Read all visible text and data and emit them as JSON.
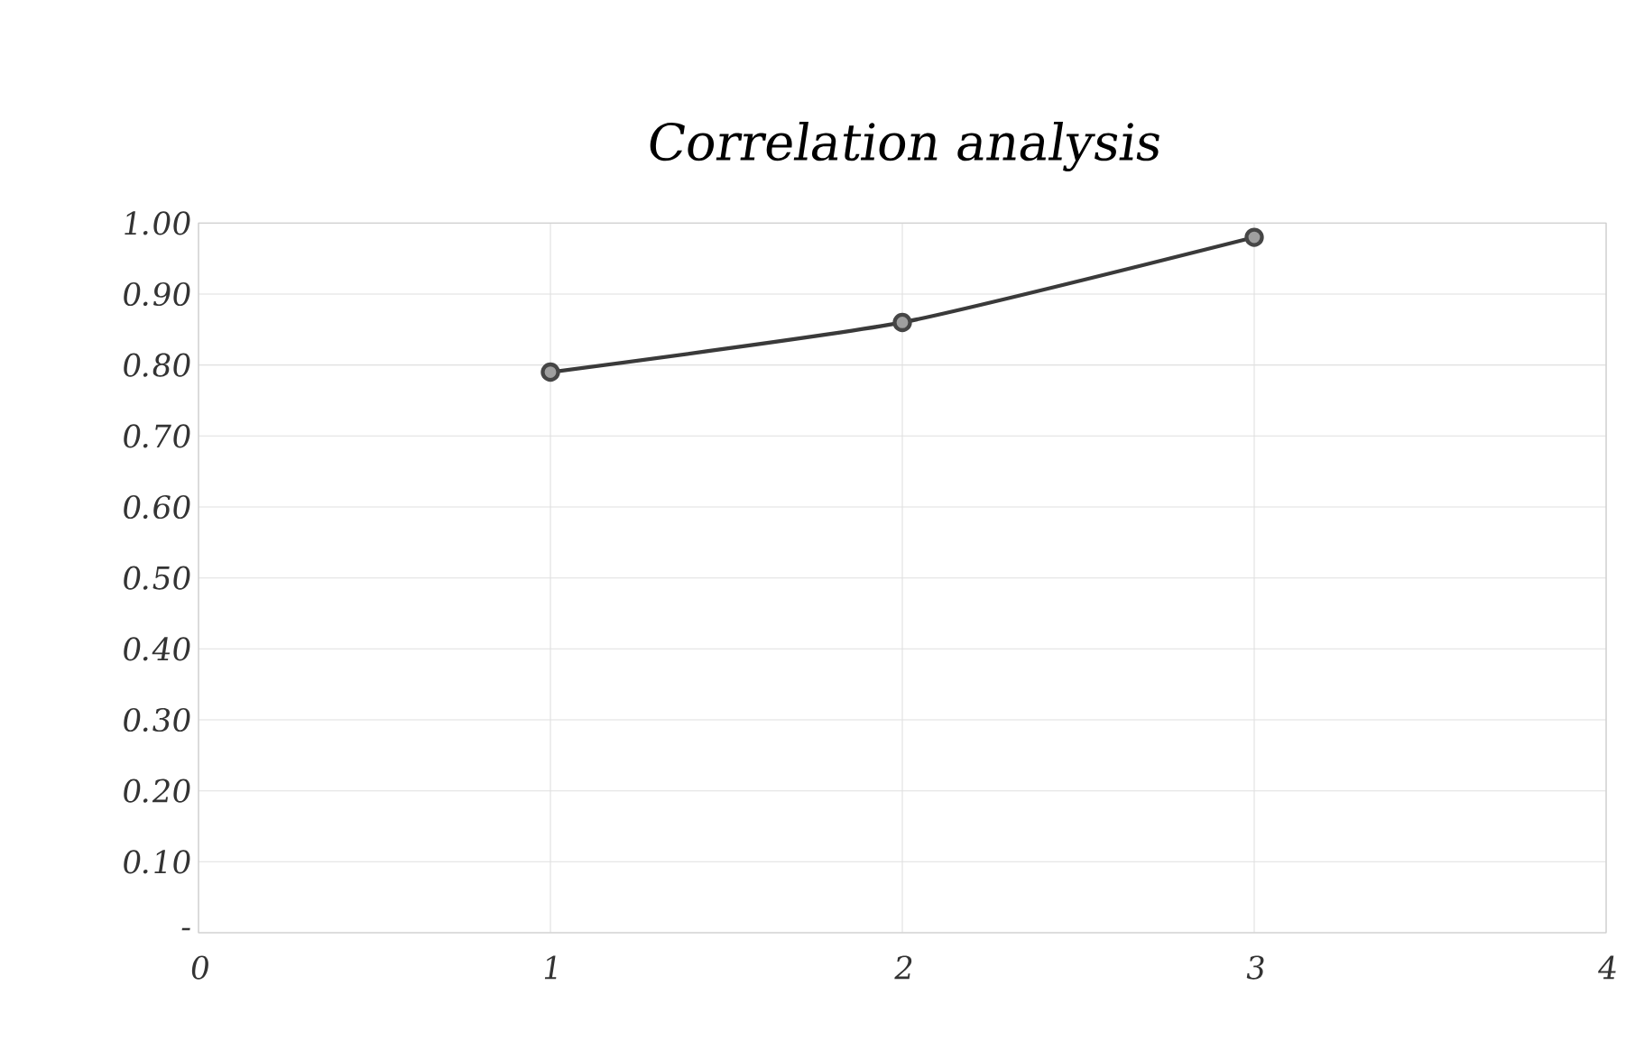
{
  "chart_data": {
    "type": "line",
    "title": "Correlation analysis",
    "series": [
      {
        "color": "#3a3a3a",
        "x": [
          1,
          2,
          3
        ],
        "values": [
          0.79,
          0.86,
          0.98
        ]
      }
    ],
    "xlim": [
      0,
      4
    ],
    "xticks": [
      0,
      1,
      2,
      3,
      4
    ],
    "ylim": [
      0,
      1
    ],
    "yticks": [
      {
        "value": 0,
        "label": "-"
      },
      {
        "value": 0.1,
        "label": "0.10"
      },
      {
        "value": 0.2,
        "label": "0.20"
      },
      {
        "value": 0.3,
        "label": "0.30"
      },
      {
        "value": 0.4,
        "label": "0.40"
      },
      {
        "value": 0.5,
        "label": "0.50"
      },
      {
        "value": 0.6,
        "label": "0.60"
      },
      {
        "value": 0.7,
        "label": "0.70"
      },
      {
        "value": 0.8,
        "label": "0.80"
      },
      {
        "value": 0.9,
        "label": "0.90"
      },
      {
        "value": 1,
        "label": "1.00"
      }
    ],
    "grid": true,
    "marker": "circle"
  }
}
